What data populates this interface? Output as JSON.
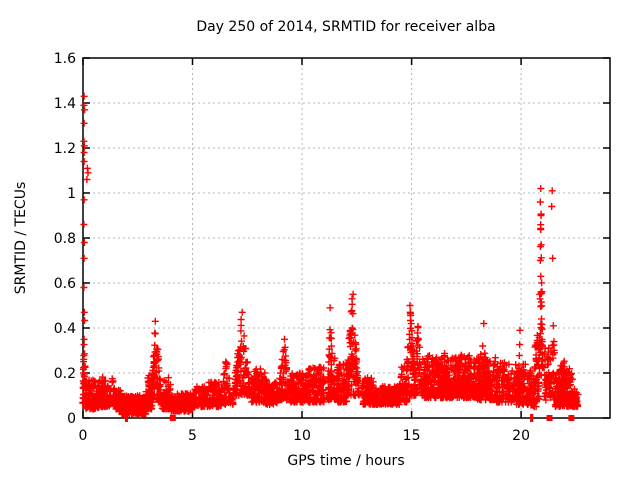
{
  "chart_data": {
    "type": "scatter",
    "title": "Day 250 of 2014, SRMTID for receiver alba",
    "xlabel": "GPS time / hours",
    "ylabel": "SRMTID / TECUs",
    "xlim": [
      0,
      24.06
    ],
    "ylim": [
      0,
      1.6
    ],
    "xticks": [
      0,
      5,
      10,
      15,
      20
    ],
    "xtick_labels": [
      "0",
      "5",
      "10",
      "15",
      "20"
    ],
    "yticks": [
      0,
      0.2,
      0.4,
      0.6,
      0.8,
      1,
      1.2,
      1.4,
      1.6
    ],
    "ytick_labels": [
      "0",
      "0.2",
      "0.4",
      "0.6",
      "0.8",
      "1",
      "1.2",
      "1.4",
      "1.6"
    ],
    "grid": true,
    "legend": "none",
    "marker": "plus",
    "marker_color": "#ff0000",
    "grid_color": "#b4b4b4",
    "axis_color": "#000000",
    "background": "#ffffff",
    "scatter_bands": [
      [
        0.12,
        0.75,
        110,
        0.04,
        0.17,
        1.6
      ],
      [
        0.75,
        1.15,
        60,
        0.05,
        0.19,
        1.7
      ],
      [
        1.5,
        1.75,
        40,
        0.04,
        0.13,
        1.5
      ],
      [
        1.75,
        2.9,
        230,
        0.015,
        0.1,
        1.3
      ],
      [
        3.6,
        4.0,
        60,
        0.04,
        0.18,
        1.8
      ],
      [
        4.0,
        5.05,
        170,
        0.03,
        0.11,
        1.4
      ],
      [
        5.05,
        5.75,
        105,
        0.05,
        0.14,
        1.5
      ],
      [
        5.75,
        6.3,
        80,
        0.05,
        0.16,
        1.5
      ],
      [
        7.7,
        8.35,
        110,
        0.07,
        0.22,
        1.7
      ],
      [
        8.35,
        8.9,
        80,
        0.06,
        0.17,
        1.5
      ],
      [
        9.45,
        10.3,
        130,
        0.07,
        0.2,
        1.6
      ],
      [
        10.3,
        11.0,
        110,
        0.07,
        0.23,
        1.7
      ],
      [
        11.6,
        12.05,
        80,
        0.07,
        0.24,
        1.6
      ],
      [
        12.7,
        13.3,
        100,
        0.06,
        0.18,
        1.6
      ],
      [
        13.3,
        14.45,
        170,
        0.06,
        0.14,
        1.4
      ],
      [
        15.5,
        16.2,
        110,
        0.09,
        0.28,
        1.6
      ],
      [
        16.2,
        17.1,
        140,
        0.09,
        0.27,
        1.6
      ],
      [
        17.1,
        18.0,
        130,
        0.09,
        0.28,
        1.6
      ],
      [
        18.0,
        18.85,
        120,
        0.08,
        0.27,
        1.6
      ],
      [
        18.85,
        19.7,
        115,
        0.07,
        0.25,
        1.6
      ],
      [
        19.7,
        20.45,
        110,
        0.06,
        0.24,
        1.6
      ],
      [
        20.45,
        20.75,
        40,
        0.05,
        0.18,
        1.5
      ],
      [
        21.05,
        21.55,
        65,
        0.08,
        0.33,
        1.7
      ],
      [
        21.55,
        22.35,
        125,
        0.05,
        0.22,
        1.6
      ],
      [
        22.35,
        22.6,
        40,
        0.05,
        0.13,
        1.4
      ]
    ],
    "scatter_peaks": [
      [
        0.07,
        0.08,
        0.06,
        0.45,
        40,
        1.0
      ],
      [
        1.32,
        0.22,
        0.05,
        0.2,
        55,
        1.3
      ],
      [
        2.98,
        0.17,
        0.04,
        0.22,
        45,
        1.3
      ],
      [
        3.32,
        0.26,
        0.07,
        0.43,
        95,
        1.4
      ],
      [
        6.55,
        0.3,
        0.06,
        0.27,
        70,
        1.4
      ],
      [
        7.25,
        0.38,
        0.1,
        0.47,
        120,
        1.5
      ],
      [
        9.18,
        0.28,
        0.08,
        0.35,
        75,
        1.4
      ],
      [
        11.3,
        0.12,
        0.12,
        0.49,
        30,
        0.9
      ],
      [
        11.45,
        0.3,
        0.08,
        0.3,
        60,
        1.5
      ],
      [
        12.3,
        0.3,
        0.1,
        0.555,
        110,
        1.5
      ],
      [
        14.6,
        0.2,
        0.07,
        0.3,
        50,
        1.4
      ],
      [
        14.95,
        0.25,
        0.1,
        0.5,
        90,
        1.4
      ],
      [
        15.3,
        0.2,
        0.1,
        0.44,
        50,
        1.4
      ],
      [
        16.5,
        0.35,
        0.1,
        0.31,
        80,
        1.5
      ],
      [
        17.3,
        0.3,
        0.1,
        0.33,
        70,
        1.5
      ],
      [
        18.3,
        0.3,
        0.09,
        0.42,
        80,
        1.5
      ],
      [
        19.95,
        0.15,
        0.07,
        0.39,
        40,
        1.1
      ],
      [
        20.9,
        0.1,
        0.18,
        1.02,
        45,
        0.95
      ],
      [
        20.7,
        0.12,
        0.08,
        0.5,
        35,
        1.2
      ],
      [
        21.9,
        0.28,
        0.06,
        0.31,
        70,
        1.5
      ]
    ],
    "outlier_points": [
      [
        0.05,
        1.43
      ],
      [
        0.04,
        1.39
      ],
      [
        0.07,
        1.37
      ],
      [
        0.05,
        1.31
      ],
      [
        0.04,
        1.23
      ],
      [
        0.06,
        1.21
      ],
      [
        0.05,
        1.18
      ],
      [
        0.05,
        1.14
      ],
      [
        0.2,
        1.11
      ],
      [
        0.23,
        1.09
      ],
      [
        0.18,
        1.06
      ],
      [
        0.05,
        0.97
      ],
      [
        0.04,
        0.86
      ],
      [
        0.06,
        0.78
      ],
      [
        0.05,
        0.71
      ],
      [
        0.04,
        0.58
      ],
      [
        0.06,
        0.47
      ],
      [
        0.05,
        0.35
      ],
      [
        20.9,
        1.02
      ],
      [
        20.88,
        0.96
      ],
      [
        20.91,
        0.9
      ],
      [
        20.89,
        0.84
      ],
      [
        20.92,
        0.77
      ],
      [
        20.88,
        0.7
      ],
      [
        20.9,
        0.63
      ],
      [
        20.91,
        0.56
      ],
      [
        21.42,
        1.01
      ],
      [
        21.4,
        0.94
      ],
      [
        21.44,
        0.71
      ],
      [
        21.47,
        0.41
      ],
      [
        21.5,
        0.34
      ],
      [
        12.33,
        0.55
      ],
      [
        12.28,
        0.53
      ],
      [
        7.27,
        0.47
      ],
      [
        14.93,
        0.5
      ],
      [
        3.3,
        0.43
      ],
      [
        11.28,
        0.49
      ],
      [
        9.2,
        0.35
      ],
      [
        18.3,
        0.42
      ],
      [
        19.95,
        0.39
      ]
    ],
    "zero_squares": [
      [
        4.1,
        0
      ],
      [
        21.3,
        0
      ],
      [
        22.3,
        0
      ]
    ],
    "zero_bars": [
      [
        1.95,
        0
      ],
      [
        2.02,
        0
      ],
      [
        20.45,
        0
      ],
      [
        20.52,
        0
      ]
    ]
  }
}
